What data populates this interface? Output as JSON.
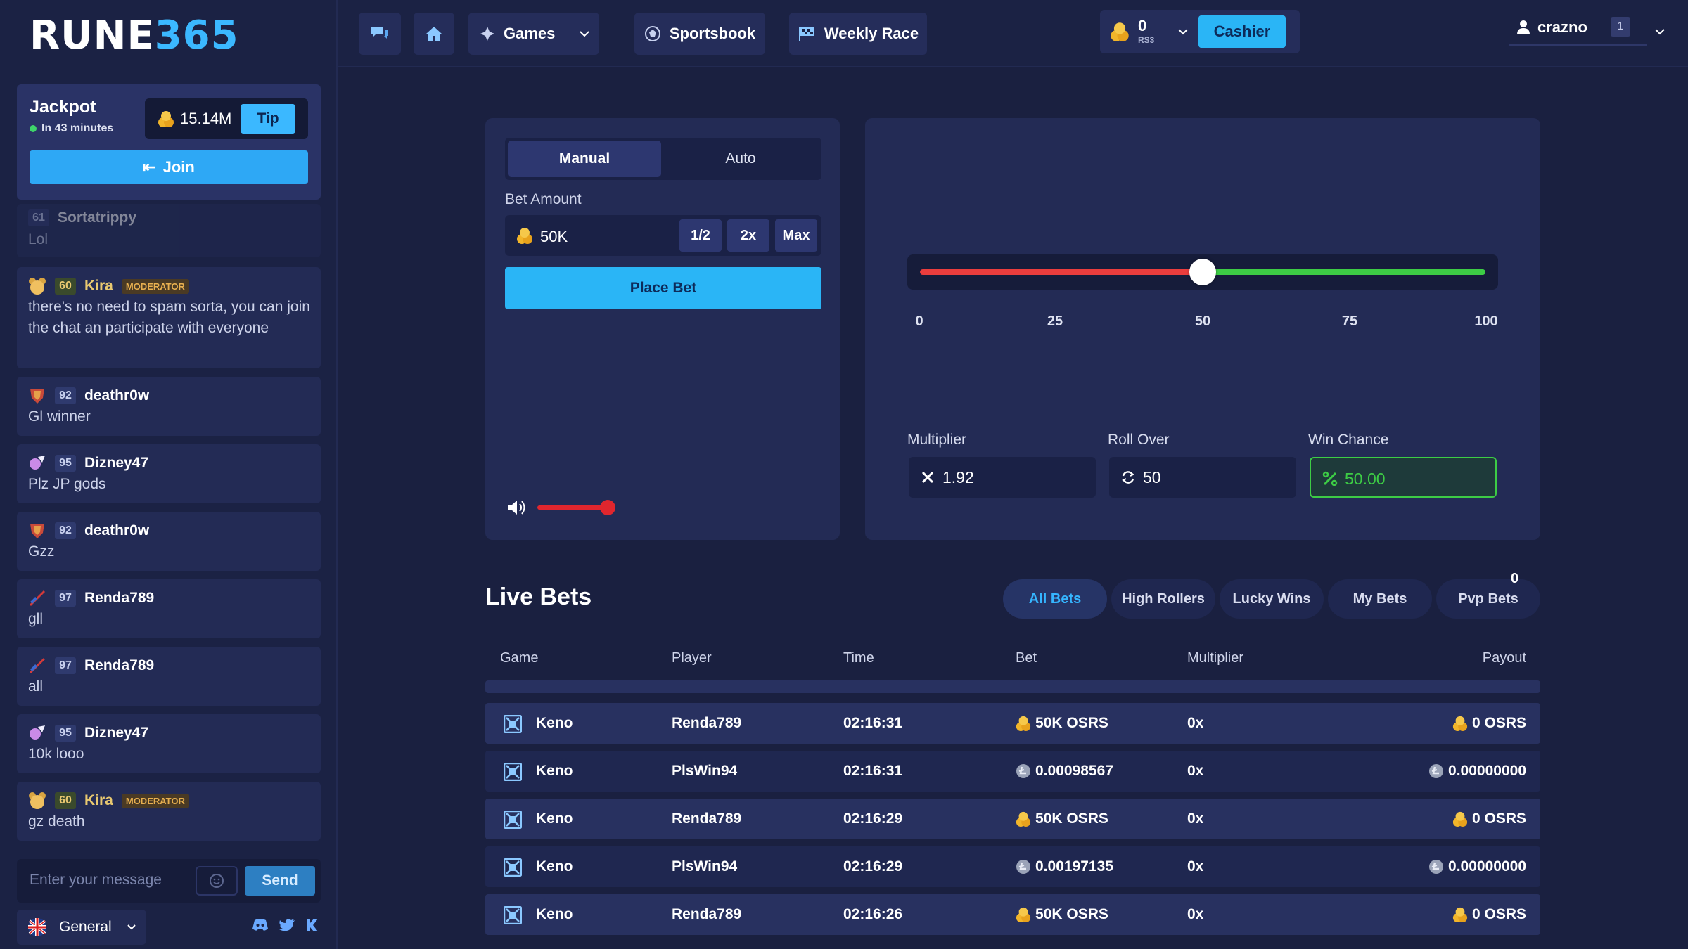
{
  "brand": {
    "logo_main": "RUNE",
    "logo_accent": "365"
  },
  "jackpot": {
    "title": "Jackpot",
    "subtitle": "In 43 minutes",
    "amount": "15.14M",
    "tip_label": "Tip",
    "join_label": "Join"
  },
  "chat": {
    "messages": [
      {
        "level": "61",
        "user": "Sortatrippy",
        "text": "Lol",
        "role": ""
      },
      {
        "level": "60",
        "user": "Kira",
        "text": "there's no need to spam sorta, you can join the chat an participate with everyone",
        "role": "MODERATOR"
      },
      {
        "level": "92",
        "user": "deathr0w",
        "text": "Gl winner",
        "role": ""
      },
      {
        "level": "95",
        "user": "Dizney47",
        "text": "Plz JP gods",
        "role": ""
      },
      {
        "level": "92",
        "user": "deathr0w",
        "text": "Gzz",
        "role": ""
      },
      {
        "level": "97",
        "user": "Renda789",
        "text": "gll",
        "role": ""
      },
      {
        "level": "97",
        "user": "Renda789",
        "text": "all",
        "role": ""
      },
      {
        "level": "95",
        "user": "Dizney47",
        "text": "10k looo",
        "role": ""
      },
      {
        "level": "60",
        "user": "Kira",
        "text": "gz death",
        "role": "MODERATOR"
      }
    ],
    "input_placeholder": "Enter your message",
    "send_label": "Send",
    "language": "General"
  },
  "nav": {
    "games_label": "Games",
    "sportsbook_label": "Sportsbook",
    "weekly_race_label": "Weekly Race",
    "balance": "0",
    "balance_unit": "RS3",
    "cashier_label": "Cashier",
    "username": "crazno",
    "user_count": "1"
  },
  "bet": {
    "tab_manual": "Manual",
    "tab_auto": "Auto",
    "amount_label": "Bet Amount",
    "amount_value": "50K",
    "half_label": "1/2",
    "double_label": "2x",
    "max_label": "Max",
    "place_label": "Place Bet",
    "volume_level": 0.85
  },
  "dice": {
    "slider_value": 50,
    "ticks": [
      "0",
      "25",
      "50",
      "75",
      "100"
    ],
    "multiplier_label": "Multiplier",
    "multiplier_value": "1.92",
    "rollover_label": "Roll Over",
    "rollover_value": "50",
    "winchance_label": "Win Chance",
    "winchance_value": "50.00"
  },
  "live_bets": {
    "title": "Live Bets",
    "tabs": [
      "All Bets",
      "High Rollers",
      "Lucky Wins",
      "My Bets",
      "Pvp Bets"
    ],
    "pvp_count": "0",
    "columns": [
      "Game",
      "Player",
      "Time",
      "Bet",
      "Multiplier",
      "Payout"
    ],
    "rows": [
      {
        "game": "Keno",
        "player": "Renda789",
        "time": "02:16:31",
        "bet": "50K OSRS",
        "multiplier": "0x",
        "payout": "0 OSRS",
        "currency": "gold"
      },
      {
        "game": "Keno",
        "player": "PlsWin94",
        "time": "02:16:31",
        "bet": "0.00098567",
        "multiplier": "0x",
        "payout": "0.00000000",
        "currency": "ltc"
      },
      {
        "game": "Keno",
        "player": "Renda789",
        "time": "02:16:29",
        "bet": "50K OSRS",
        "multiplier": "0x",
        "payout": "0 OSRS",
        "currency": "gold"
      },
      {
        "game": "Keno",
        "player": "PlsWin94",
        "time": "02:16:29",
        "bet": "0.00197135",
        "multiplier": "0x",
        "payout": "0.00000000",
        "currency": "ltc"
      },
      {
        "game": "Keno",
        "player": "Renda789",
        "time": "02:16:26",
        "bet": "50K OSRS",
        "multiplier": "0x",
        "payout": "0 OSRS",
        "currency": "gold"
      }
    ]
  },
  "colors": {
    "accent": "#2ab5f6",
    "win": "#3dcc45",
    "lose": "#ea3d3d",
    "bg": "#1a2040",
    "panel": "#232b55"
  },
  "icons": [
    "chat-icon",
    "home-icon",
    "games-icon",
    "chevron-down-icon",
    "sportsbook-icon",
    "race-flag-icon",
    "gold-coin-icon",
    "user-icon",
    "join-icon",
    "emoji-icon",
    "discord-icon",
    "twitter-icon",
    "kick-icon",
    "volume-icon",
    "multiplier-x-icon",
    "rollover-icon",
    "percent-icon",
    "keno-icon",
    "ltc-coin-icon",
    "uk-flag-icon"
  ]
}
